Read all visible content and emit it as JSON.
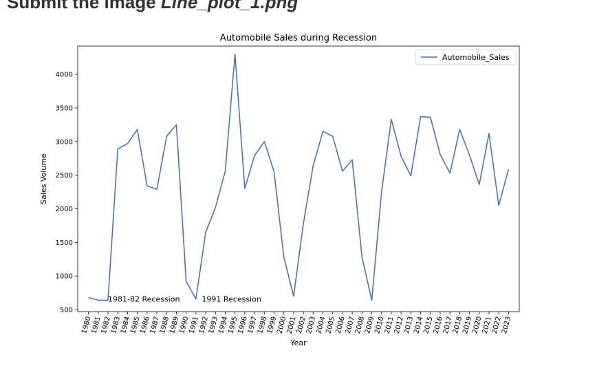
{
  "heading": {
    "prefix": "Submit the image ",
    "filename": "Line_plot_1.png"
  },
  "chart_data": {
    "type": "line",
    "title": "Automobile Sales during Recession",
    "xlabel": "Year",
    "ylabel": "Sales Volume",
    "ylim": [
      470,
      4420
    ],
    "yticks": [
      500,
      1000,
      1500,
      2000,
      2500,
      3000,
      3500,
      4000
    ],
    "xlim": [
      1978.9,
      2024.1
    ],
    "legend_position": "top-right",
    "grid": false,
    "x": [
      1980,
      1981,
      1982,
      1983,
      1984,
      1985,
      1986,
      1987,
      1988,
      1989,
      1990,
      1991,
      1992,
      1993,
      1994,
      1995,
      1996,
      1997,
      1998,
      1999,
      2000,
      2001,
      2002,
      2003,
      2004,
      2005,
      2006,
      2007,
      2008,
      2009,
      2010,
      2011,
      2012,
      2013,
      2014,
      2015,
      2016,
      2017,
      2018,
      2019,
      2020,
      2021,
      2022,
      2023
    ],
    "series": [
      {
        "name": "Automobile_Sales",
        "color": "#4c72b0",
        "values": [
          680,
          640,
          640,
          2890,
          2970,
          3180,
          2340,
          2290,
          3080,
          3250,
          920,
          660,
          1650,
          2020,
          2560,
          4300,
          2300,
          2790,
          3000,
          2550,
          1280,
          700,
          1780,
          2640,
          3150,
          3080,
          2560,
          2730,
          1280,
          640,
          2250,
          3330,
          2780,
          2490,
          3370,
          3360,
          2810,
          2530,
          3180,
          2800,
          2360,
          3120,
          2050,
          2590
        ]
      }
    ],
    "annotations": [
      {
        "text": "1981-82 Recession",
        "x": 1982.0,
        "y": 650
      },
      {
        "text": "1991 Recession",
        "x": 1991.6,
        "y": 650
      }
    ]
  }
}
